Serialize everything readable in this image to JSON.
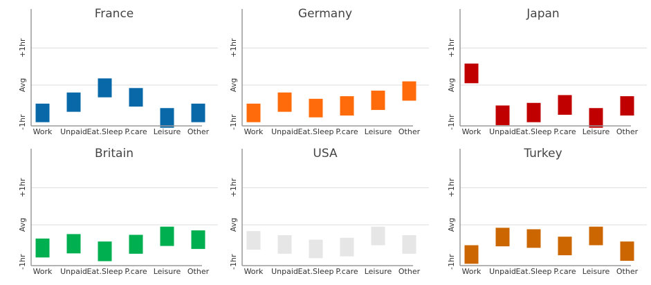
{
  "chart_data": {
    "type": "floating-bar",
    "y_unit": "hours relative to average",
    "ylim": [
      -1.1,
      2.05
    ],
    "y_ticks": [
      {
        "value": 1,
        "label": "+1hr"
      },
      {
        "value": 0,
        "label": "Avg"
      },
      {
        "value": -1,
        "label": "-1hr"
      }
    ],
    "categories": [
      "Work",
      "Unpaid",
      "Eat.Sleep",
      "P.care",
      "Leisure",
      "Other"
    ],
    "panels": [
      {
        "title": "France",
        "color": "#0868a8",
        "bars": [
          [
            -1.0,
            -0.5
          ],
          [
            -0.72,
            -0.2
          ],
          [
            -0.33,
            0.18
          ],
          [
            -0.58,
            -0.08
          ],
          [
            -1.15,
            -0.62
          ],
          [
            -1.0,
            -0.5
          ]
        ]
      },
      {
        "title": "Germany",
        "color": "#ff6b0a",
        "bars": [
          [
            -1.0,
            -0.5
          ],
          [
            -0.72,
            -0.2
          ],
          [
            -0.87,
            -0.37
          ],
          [
            -0.82,
            -0.3
          ],
          [
            -0.67,
            -0.15
          ],
          [
            -0.42,
            0.1
          ]
        ]
      },
      {
        "title": "Japan",
        "color": "#c00000",
        "bars": [
          [
            0.05,
            0.58
          ],
          [
            -1.08,
            -0.55
          ],
          [
            -1.0,
            -0.48
          ],
          [
            -0.8,
            -0.27
          ],
          [
            -1.15,
            -0.62
          ],
          [
            -0.82,
            -0.3
          ]
        ]
      },
      {
        "title": "Britain",
        "color": "#00b050",
        "bars": [
          [
            -0.88,
            -0.37
          ],
          [
            -0.77,
            -0.25
          ],
          [
            -0.98,
            -0.45
          ],
          [
            -0.78,
            -0.27
          ],
          [
            -0.57,
            -0.05
          ],
          [
            -0.65,
            -0.15
          ]
        ]
      },
      {
        "title": "USA",
        "color": "#e6e6e6",
        "bars": [
          [
            -0.67,
            -0.17
          ],
          [
            -0.78,
            -0.28
          ],
          [
            -0.9,
            -0.4
          ],
          [
            -0.85,
            -0.35
          ],
          [
            -0.55,
            -0.05
          ],
          [
            -0.78,
            -0.28
          ]
        ]
      },
      {
        "title": "Turkey",
        "color": "#cc6600",
        "bars": [
          [
            -1.05,
            -0.55
          ],
          [
            -0.58,
            -0.08
          ],
          [
            -0.62,
            -0.12
          ],
          [
            -0.82,
            -0.32
          ],
          [
            -0.55,
            -0.05
          ],
          [
            -0.97,
            -0.45
          ]
        ]
      }
    ]
  }
}
